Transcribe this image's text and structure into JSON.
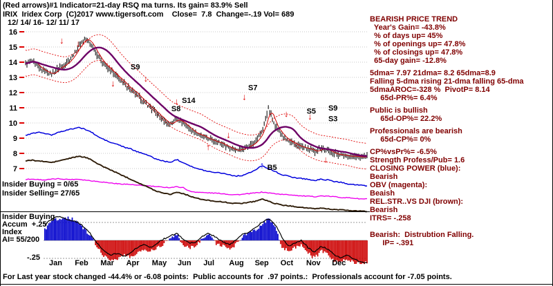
{
  "header": {
    "line1": "(Red arrows)#1 Indicator=21-day RSQ ma turns. Its gain= 83.9% Sell",
    "line2": "IRIX  Iridex Corp  (C)2017 www.tigersoft.com    Close=  7.8  Change=-.19 Vol= 689",
    "line3": "12/ 14/ 16- 12/ 11/ 17"
  },
  "overlays": {
    "insider_buying": "Insider Buying = 0/65",
    "insider_selling": "Insider Selling= 27/65",
    "pane2_line1": "Insider Buying",
    "pane2_line2": "Accum  +.25",
    "pane2_line3": "Index",
    "pane2_line4": "AI= 55/200",
    "neg_scale_label": "-.25"
  },
  "right_panel": {
    "color": "#800000",
    "lines": [
      "BEARISH PRICE TREND",
      "  Year's Gain= -43.8%",
      "  % of days up= 45%",
      "  % of openings up= 47.8%",
      "  % of closings up= 47.8%",
      "  65-day gain= -12.8%",
      "",
      "5dma= 7.97 21dma= 8.2 65dma=8.9",
      "Falling 5-dma rising 21-dma falling 65-dma",
      "5dmaAROC=-328 %  PivotP= 8.14",
      "     65d-PR%= 6.4%",
      "",
      "Public is bullish",
      "     65d-OP%= 22.2%",
      "",
      "Professionals are bearish",
      "     65d-CP%= 0%",
      "",
      "CP%vsPr%= -6.5%",
      "Strength Profess/Pub= 1.6",
      "CLOSING POWER (blue):",
      "Bearish",
      "OBV (magenta):",
      "Beaish",
      "REL.STR..VS DJI (brown):",
      "Bearish",
      "ITRS= -.258",
      "",
      "",
      "Bearish:  Distrubtion Falling.",
      "      IP= -.391"
    ]
  },
  "footer": "For Last year stock changed -44.4% or -6.08 points:  Public accounts for  .97 points.:  Professionals account for -7.05 points.",
  "chart_data": {
    "type": "line",
    "title": "IRIX Iridex Corp daily price with 21-day RSQ ma turns, Closing Power, OBV, Rel.Str. vs DJI and Insider Buying Accum Index",
    "date_range": "12/14/16 - 12/11/17",
    "months": [
      "Jan",
      "Feb",
      "Mar",
      "Apr",
      "May",
      "Jun",
      "Jul",
      "Aug",
      "Sep",
      "Oct",
      "Nov",
      "Dec"
    ],
    "price_axis": {
      "min": 7,
      "max": 16,
      "ticks": [
        16,
        15,
        14,
        13,
        12,
        11,
        10,
        9,
        8,
        7
      ]
    },
    "series": [
      {
        "name": "close",
        "color": "#000000",
        "values": [
          13.9,
          14.1,
          13.6,
          13.4,
          13.2,
          13.6,
          13.9,
          14.3,
          15.0,
          15.6,
          15.2,
          14.4,
          13.8,
          13.4,
          13.0,
          12.6,
          12.2,
          11.8,
          11.4,
          11.0,
          10.6,
          10.2,
          9.9,
          10.3,
          10.0,
          9.6,
          9.3,
          9.1,
          8.9,
          8.8,
          8.6,
          8.4,
          8.2,
          8.3,
          8.5,
          8.8,
          9.4,
          11.0,
          9.8,
          9.2,
          8.8,
          8.6,
          8.4,
          8.3,
          8.1,
          8.35,
          8.2,
          8.0,
          7.9,
          7.85,
          7.8,
          7.75,
          7.8
        ]
      },
      {
        "name": "closing_power",
        "color": "#0000dd",
        "values": [
          9.2,
          9.3,
          9.4,
          9.3,
          9.2,
          9.4,
          9.5,
          9.6,
          9.7,
          9.6,
          9.4,
          9.1,
          8.9,
          8.7,
          8.6,
          8.4,
          8.3,
          8.1,
          8.0,
          7.8,
          7.6,
          7.5,
          7.4,
          7.6,
          7.4,
          7.2,
          7.0,
          6.9,
          6.8,
          6.75,
          6.7,
          6.6,
          6.5,
          6.55,
          6.7,
          6.9,
          7.2,
          7.0,
          6.8,
          6.6,
          6.5,
          6.4,
          6.35,
          6.3,
          6.2,
          6.3,
          6.25,
          6.15,
          6.1,
          6.0,
          5.95,
          5.9,
          5.85
        ]
      },
      {
        "name": "obv",
        "color": "#ee00ee",
        "values": [
          6.3,
          6.3,
          6.28,
          6.25,
          6.3,
          6.33,
          6.3,
          6.28,
          6.3,
          6.25,
          6.2,
          6.15,
          6.1,
          6.05,
          6.0,
          5.98,
          5.95,
          5.9,
          5.88,
          5.85,
          5.8,
          5.78,
          5.75,
          5.8,
          5.75,
          5.5,
          5.45,
          5.42,
          5.4,
          5.38,
          5.35,
          5.3,
          5.28,
          5.3,
          5.35,
          5.4,
          5.45,
          5.4,
          5.35,
          5.3,
          5.28,
          5.25,
          5.2,
          5.18,
          5.15,
          5.2,
          5.18,
          5.15,
          5.1,
          5.08,
          5.05,
          5.0,
          5.0
        ]
      },
      {
        "name": "rel_str_vs_dji",
        "color": "#2e1c08",
        "values": [
          7.5,
          7.55,
          7.5,
          7.45,
          7.4,
          7.5,
          7.6,
          7.7,
          7.8,
          7.75,
          7.6,
          7.3,
          7.1,
          6.9,
          6.7,
          6.5,
          6.3,
          6.1,
          5.9,
          5.7,
          5.5,
          5.4,
          5.3,
          5.45,
          5.35,
          5.2,
          5.05,
          4.95,
          4.9,
          4.85,
          4.8,
          4.75,
          4.7,
          4.72,
          4.78,
          4.85,
          5.0,
          4.85,
          4.7,
          4.6,
          4.55,
          4.5,
          4.45,
          4.4,
          4.35,
          4.4,
          4.35,
          4.3,
          4.28,
          4.25,
          4.22,
          4.2,
          4.18
        ]
      }
    ],
    "overlays_ma": {
      "ma5_color": "#cc0000",
      "ma21_color": "#6d0066",
      "band_color": "#e00000",
      "band_offset": 0.85
    },
    "accum_pane": {
      "label": "Insider Buying Accum Index",
      "ai_value": "AI= 55/200",
      "scale": {
        "pos": "+.25",
        "neg": "-.25",
        "unit": 0.25
      },
      "pos_color": "#0000cc",
      "neg_color": "#cc0000",
      "histogram": [
        0.05,
        0.1,
        0.05,
        0.15,
        0.28,
        0.3,
        0.32,
        0.3,
        0.25,
        0.15,
        0.05,
        -0.1,
        -0.22,
        -0.28,
        -0.25,
        -0.2,
        -0.24,
        -0.18,
        -0.12,
        -0.15,
        -0.1,
        -0.05,
        0.04,
        0.08,
        -0.06,
        -0.1,
        -0.08,
        0.05,
        0.08,
        -0.04,
        -0.08,
        -0.12,
        -0.06,
        0.05,
        0.1,
        0.15,
        0.22,
        0.3,
        0.2,
        -0.08,
        -0.15,
        -0.1,
        -0.05,
        -0.18,
        -0.25,
        -0.15,
        -0.2,
        -0.28,
        -0.3,
        -0.26,
        -0.3,
        -0.32,
        -0.3
      ],
      "ai_line": [
        0.1,
        0.15,
        0.18,
        0.22,
        0.3,
        0.33,
        0.3,
        0.28,
        0.25,
        0.18,
        0.08,
        -0.05,
        -0.15,
        -0.2,
        -0.18,
        -0.22,
        -0.18,
        -0.1,
        -0.06,
        -0.1,
        -0.04,
        0.02,
        0.06,
        0.1,
        0.02,
        -0.04,
        -0.02,
        0.06,
        0.1,
        0.04,
        -0.02,
        -0.06,
        0.0,
        0.08,
        0.12,
        0.18,
        0.25,
        0.3,
        0.22,
        0.05,
        -0.08,
        -0.04,
        0.0,
        -0.1,
        -0.16,
        -0.08,
        -0.12,
        -0.2,
        -0.24,
        -0.2,
        -0.26,
        -0.3,
        -0.32
      ]
    },
    "signals": [
      {
        "label": "S9",
        "week": 16.0,
        "price": 13.7
      },
      {
        "label": "S8",
        "week": 22.2,
        "price": 10.95
      },
      {
        "label": "S14",
        "week": 23.8,
        "price": 11.5
      },
      {
        "label": "S7",
        "week": 33.9,
        "price": 12.35
      },
      {
        "label": "S5",
        "week": 42.8,
        "price": 10.8
      },
      {
        "label": "S9",
        "week": 46.1,
        "price": 11.0
      },
      {
        "label": "S3",
        "week": 46.1,
        "price": 10.3
      },
      {
        "label": "B5",
        "week": 36.8,
        "price": 7.1
      }
    ],
    "arrows": [
      {
        "dir": "down",
        "week": 5.5,
        "price": 15.4,
        "color": "#dd0000"
      },
      {
        "dir": "down",
        "week": 8.0,
        "price": 15.2,
        "color": "#dd0000"
      },
      {
        "dir": "down",
        "week": 13.3,
        "price": 12.6,
        "color": "#dd0000"
      },
      {
        "dir": "down",
        "week": 18.3,
        "price": 12.9,
        "color": "#dd0000"
      },
      {
        "dir": "down",
        "week": 23.0,
        "price": 11.4,
        "color": "#dd0000"
      },
      {
        "dir": "down",
        "week": 30.9,
        "price": 9.2,
        "color": "#dd0000"
      },
      {
        "dir": "down",
        "week": 33.3,
        "price": 11.7,
        "color": "#dd0000"
      },
      {
        "dir": "down",
        "week": 39.7,
        "price": 10.6,
        "color": "#dd0000"
      },
      {
        "dir": "down",
        "week": 43.3,
        "price": 10.4,
        "color": "#dd0000"
      },
      {
        "dir": "down",
        "week": 45.7,
        "price": 7.6,
        "color": "#dd0000"
      },
      {
        "dir": "up",
        "week": 27.8,
        "price": 8.4,
        "color": "#dd0000"
      },
      {
        "dir": "up",
        "week": 36.0,
        "price": 7.2,
        "color": "#0000ee"
      }
    ]
  }
}
